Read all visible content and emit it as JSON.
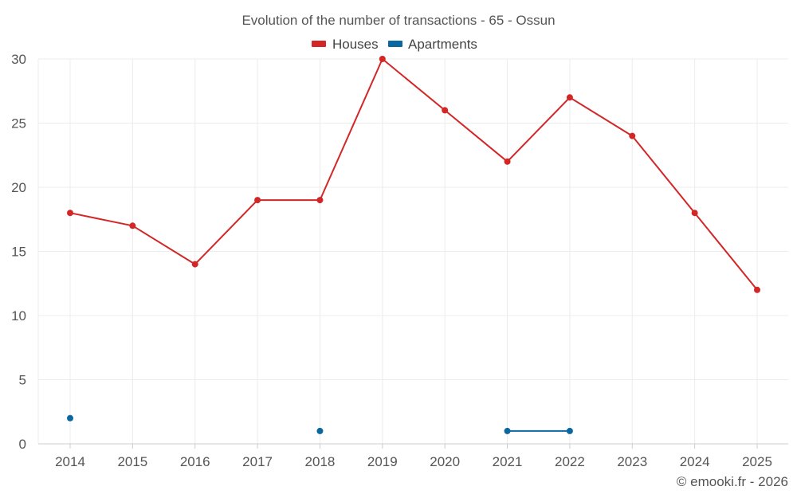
{
  "chart_data": {
    "type": "line",
    "title": "Evolution of the number of transactions - 65 - Ossun",
    "categories": [
      "2014",
      "2015",
      "2016",
      "2017",
      "2018",
      "2019",
      "2020",
      "2021",
      "2022",
      "2023",
      "2024",
      "2025"
    ],
    "series": [
      {
        "name": "Houses",
        "color": "#d32626",
        "values": [
          18,
          17,
          14,
          19,
          19,
          30,
          26,
          22,
          27,
          24,
          18,
          12
        ]
      },
      {
        "name": "Apartments",
        "color": "#0b67a0",
        "values": [
          2,
          null,
          null,
          null,
          1,
          null,
          null,
          1,
          1,
          null,
          null,
          null
        ]
      }
    ],
    "ylim": [
      0,
      30
    ],
    "yticks": [
      0,
      5,
      10,
      15,
      20,
      25,
      30
    ],
    "xlabel": "",
    "ylabel": "",
    "grid": true,
    "legend_position": "top-center",
    "credit": "© emooki.fr - 2026"
  }
}
